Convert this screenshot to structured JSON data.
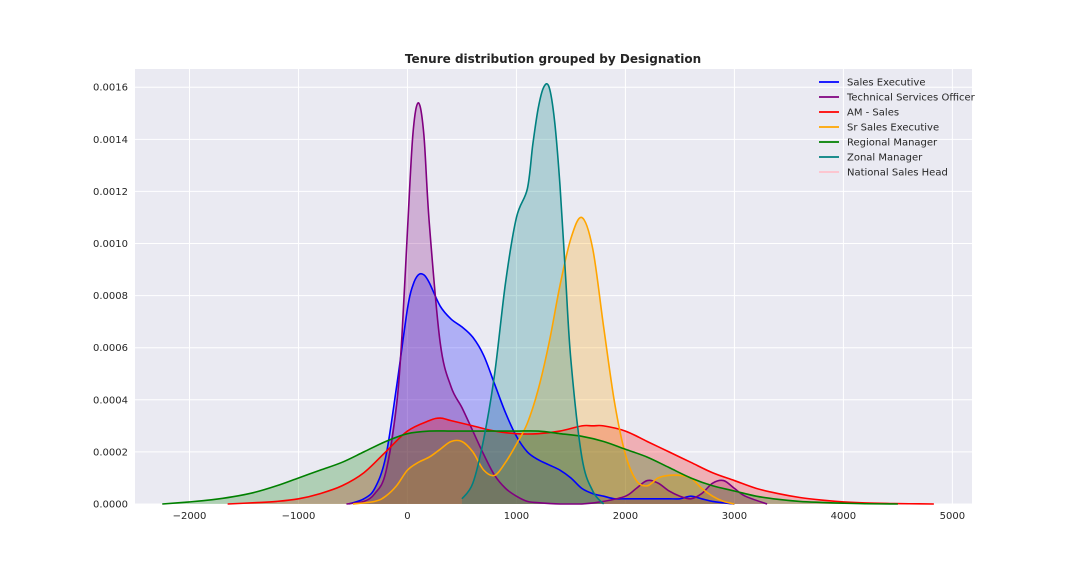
{
  "chart_data": {
    "type": "area",
    "title": "Tenure distribution grouped by Designation",
    "xlabel": "",
    "ylabel": "",
    "xlim": [
      -2500,
      5180
    ],
    "ylim": [
      0,
      0.00167
    ],
    "xticks": [
      -2000,
      -1000,
      0,
      1000,
      2000,
      3000,
      4000,
      5000
    ],
    "xtick_labels": [
      "−2000",
      "−1000",
      "0",
      "1000",
      "2000",
      "3000",
      "4000",
      "5000"
    ],
    "yticks": [
      0,
      0.0002,
      0.0004,
      0.0006,
      0.0008,
      0.001,
      0.0012,
      0.0014,
      0.0016
    ],
    "ytick_labels": [
      "0.0000",
      "0.0002",
      "0.0004",
      "0.0006",
      "0.0008",
      "0.0010",
      "0.0012",
      "0.0014",
      "0.0016"
    ],
    "grid": true,
    "legend_position": "top-right",
    "series": [
      {
        "name": "Sales Executive",
        "color": "#0000ff",
        "x": [
          -540,
          -400,
          -300,
          -200,
          -100,
          0,
          50,
          100,
          150,
          200,
          300,
          400,
          500,
          600,
          700,
          800,
          900,
          1000,
          1100,
          1200,
          1300,
          1400,
          1500,
          1600,
          1700,
          1800,
          1900,
          2000,
          2100,
          2200,
          2300,
          2400,
          2500,
          2600,
          2700,
          2800,
          3000
        ],
        "y": [
          0,
          2e-05,
          6e-05,
          0.00018,
          0.00045,
          0.00075,
          0.00084,
          0.00088,
          0.00088,
          0.00085,
          0.00076,
          0.00071,
          0.00068,
          0.00064,
          0.00057,
          0.00046,
          0.00035,
          0.00026,
          0.0002,
          0.00017,
          0.00015,
          0.00013,
          0.0001,
          6e-05,
          4e-05,
          3e-05,
          2e-05,
          2e-05,
          2e-05,
          2e-05,
          2e-05,
          2e-05,
          2e-05,
          3e-05,
          2e-05,
          1e-05,
          0
        ]
      },
      {
        "name": "Technical Services Officer",
        "color": "#800080",
        "x": [
          -560,
          -400,
          -300,
          -200,
          -100,
          -50,
          0,
          50,
          100,
          150,
          200,
          300,
          400,
          500,
          600,
          700,
          800,
          900,
          1000,
          1100,
          1200,
          1400,
          1600,
          1800,
          2000,
          2100,
          2200,
          2300,
          2400,
          2500,
          2600,
          2700,
          2800,
          2900,
          3000,
          3100,
          3300
        ],
        "y": [
          0,
          1e-05,
          4e-05,
          0.00012,
          0.00038,
          0.00065,
          0.00105,
          0.00142,
          0.00154,
          0.00142,
          0.00108,
          0.00062,
          0.00045,
          0.00037,
          0.00028,
          0.00019,
          0.00011,
          6e-05,
          3e-05,
          1e-05,
          5e-06,
          0,
          0,
          1e-05,
          3e-05,
          6e-05,
          9e-05,
          8e-05,
          5e-05,
          3e-05,
          2e-05,
          4e-05,
          8e-05,
          9e-05,
          6e-05,
          3e-05,
          0
        ]
      },
      {
        "name": "AM - Sales",
        "color": "#ff0000",
        "x": [
          -1650,
          -1400,
          -1200,
          -1000,
          -800,
          -600,
          -400,
          -200,
          0,
          200,
          300,
          400,
          600,
          800,
          1000,
          1200,
          1400,
          1600,
          1700,
          1800,
          2000,
          2200,
          2400,
          2600,
          2800,
          3000,
          3200,
          3400,
          3600,
          3800,
          4000,
          4200,
          4400,
          4600,
          4830
        ],
        "y": [
          0,
          5e-06,
          1e-05,
          2e-05,
          4e-05,
          7e-05,
          0.00012,
          0.0002,
          0.00028,
          0.00032,
          0.00033,
          0.00032,
          0.0003,
          0.00028,
          0.00027,
          0.00027,
          0.00028,
          0.0003,
          0.0003,
          0.0003,
          0.00028,
          0.00024,
          0.0002,
          0.00016,
          0.00012,
          9e-05,
          6e-05,
          4e-05,
          2.5e-05,
          1.5e-05,
          8e-06,
          4e-06,
          2e-06,
          1e-06,
          0
        ]
      },
      {
        "name": "Sr Sales Executive",
        "color": "#ffa500",
        "x": [
          -500,
          -300,
          -200,
          -100,
          0,
          100,
          200,
          300,
          400,
          500,
          600,
          700,
          800,
          900,
          1000,
          1100,
          1200,
          1300,
          1400,
          1500,
          1600,
          1700,
          1800,
          1900,
          2000,
          2100,
          2200,
          2300,
          2400,
          2500,
          2600,
          2700,
          2800,
          2900,
          3000
        ],
        "y": [
          0,
          1e-05,
          3e-05,
          7e-05,
          0.00013,
          0.00016,
          0.00018,
          0.00021,
          0.00024,
          0.00024,
          0.0002,
          0.00013,
          0.00011,
          0.00016,
          0.00023,
          0.00031,
          0.00044,
          0.00062,
          0.00084,
          0.00102,
          0.0011,
          0.00098,
          0.00068,
          0.00039,
          0.00019,
          9e-05,
          7e-05,
          0.0001,
          0.00011,
          0.00011,
          0.0001,
          6e-05,
          3e-05,
          1e-05,
          0
        ]
      },
      {
        "name": "Regional Manager",
        "color": "#008000",
        "x": [
          -2250,
          -2000,
          -1800,
          -1600,
          -1400,
          -1200,
          -1000,
          -800,
          -600,
          -400,
          -200,
          0,
          200,
          400,
          600,
          800,
          1000,
          1200,
          1400,
          1600,
          1800,
          2000,
          2200,
          2400,
          2600,
          2800,
          3000,
          3200,
          3400,
          3600,
          3800,
          4000,
          4200,
          4500
        ],
        "y": [
          0,
          8e-06,
          1.6e-05,
          2.8e-05,
          4.5e-05,
          7e-05,
          0.0001,
          0.00013,
          0.00016,
          0.0002,
          0.00024,
          0.00027,
          0.00028,
          0.00028,
          0.00028,
          0.00028,
          0.00028,
          0.00028,
          0.00027,
          0.00026,
          0.00024,
          0.00021,
          0.00018,
          0.00014,
          0.0001,
          7e-05,
          5e-05,
          3e-05,
          1.8e-05,
          1e-05,
          6e-06,
          3e-06,
          1e-06,
          0
        ]
      },
      {
        "name": "Zonal Manager",
        "color": "#008080",
        "x": [
          500,
          600,
          700,
          800,
          900,
          1000,
          1100,
          1150,
          1200,
          1250,
          1300,
          1350,
          1400,
          1450,
          1500,
          1600,
          1700,
          1800
        ],
        "y": [
          2e-05,
          8e-05,
          0.00025,
          0.0005,
          0.00085,
          0.0011,
          0.00121,
          0.00138,
          0.00152,
          0.0016,
          0.0016,
          0.00147,
          0.00122,
          0.00088,
          0.00055,
          0.00018,
          5e-05,
          0
        ]
      },
      {
        "name": "National Sales Head",
        "color": "#ffc0cb",
        "x": [],
        "y": []
      }
    ]
  }
}
